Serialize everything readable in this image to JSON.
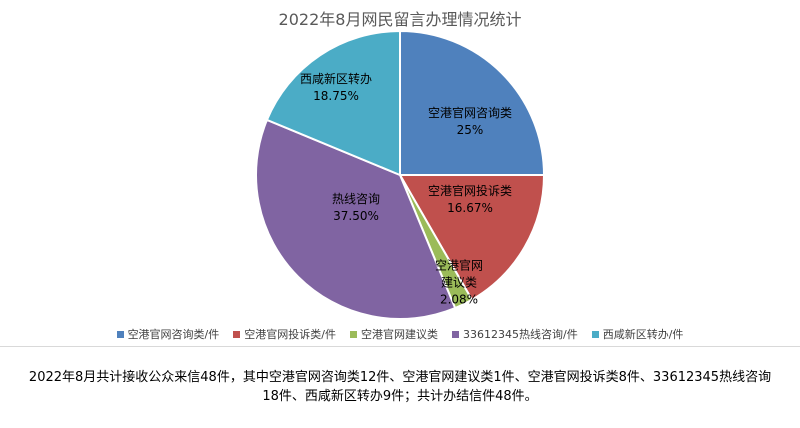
{
  "chart_data": {
    "type": "pie",
    "title": "2022年8月网民留言办理情况统计",
    "categories": [
      "空港官网咨询类",
      "空港官网投诉类",
      "空港官网建议类",
      "热线咨询",
      "西咸新区转办"
    ],
    "values": [
      25,
      16.67,
      2.08,
      37.5,
      18.75
    ],
    "data_labels": [
      [
        "空港官网咨询类",
        "25%"
      ],
      [
        "空港官网投诉类",
        "16.67%"
      ],
      [
        "空港官网",
        "建议类",
        "2.08%"
      ],
      [
        "热线咨询",
        "37.50%"
      ],
      [
        "西咸新区转办",
        "18.75%"
      ]
    ],
    "colors": [
      "#4f81bd",
      "#c0504d",
      "#9bbb59",
      "#8064a2",
      "#4bacc6"
    ],
    "legend": [
      "空港官网咨询类/件",
      "空港官网投诉类/件",
      "空港官网建议类",
      "33612345热线咨询/件",
      "西咸新区转办/件"
    ],
    "legend_position": "bottom"
  },
  "summary": {
    "line1": "2022年8月共计接收公众来信48件，其中空港官网咨询类12件、空港官网建议类1件、空港官网投诉类8件、33612345热线咨询",
    "line2": "18件、西咸新区转办9件；共计办结信件48件。"
  }
}
